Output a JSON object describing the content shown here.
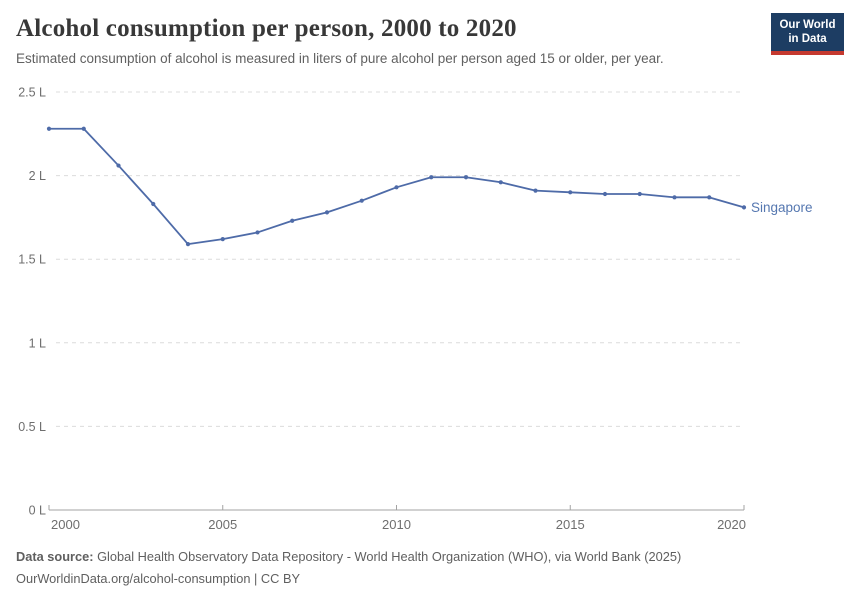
{
  "header": {
    "title": "Alcohol consumption per person, 2000 to 2020",
    "subtitle": "Estimated consumption of alcohol is measured in liters of pure alcohol per person aged 15 or older, per year."
  },
  "logo": {
    "line1": "Our World",
    "line2": "in Data"
  },
  "chart_data": {
    "type": "line",
    "title": "Alcohol consumption per person, 2000 to 2020",
    "xlabel": "",
    "ylabel": "liters of pure alcohol per person aged 15+ per year",
    "xlim": [
      2000,
      2020
    ],
    "ylim": [
      0,
      2.5
    ],
    "grid": "horizontal-dashed",
    "legend": "label-at-line-end",
    "x": [
      2000,
      2001,
      2002,
      2003,
      2004,
      2005,
      2006,
      2007,
      2008,
      2009,
      2010,
      2011,
      2012,
      2013,
      2014,
      2015,
      2016,
      2017,
      2018,
      2019,
      2020
    ],
    "series": [
      {
        "name": "Singapore",
        "values": [
          2.28,
          2.28,
          2.06,
          1.83,
          1.59,
          1.62,
          1.66,
          1.73,
          1.78,
          1.85,
          1.93,
          1.99,
          1.99,
          1.96,
          1.91,
          1.9,
          1.89,
          1.89,
          1.87,
          1.87,
          1.81
        ]
      }
    ],
    "x_tick_labels": [
      "2000",
      "2005",
      "2010",
      "2015",
      "2020"
    ],
    "y_tick_values": [
      0,
      0.5,
      1,
      1.5,
      2,
      2.5
    ],
    "y_tick_labels": [
      "0 L",
      "0.5 L",
      "1 L",
      "1.5 L",
      "2 L",
      "2.5 L"
    ]
  },
  "footer": {
    "datasource_label": "Data source:",
    "datasource_text": " Global Health Observatory Data Repository - World Health Organization (WHO), via World Bank (2025)",
    "line2": "OurWorldinData.org/alcohol-consumption | CC BY"
  },
  "colors": {
    "line": "#4e6ba8",
    "series_label": "#5577b0",
    "title": "#383838",
    "subtitle": "#616161",
    "axis_text": "#6e6e6e",
    "gridline": "#dcdcdc",
    "axis_line": "#a3a3a3",
    "logo_bg": "#1d3d63",
    "logo_red": "#c5392f",
    "footer_text": "#5f5f5f"
  }
}
